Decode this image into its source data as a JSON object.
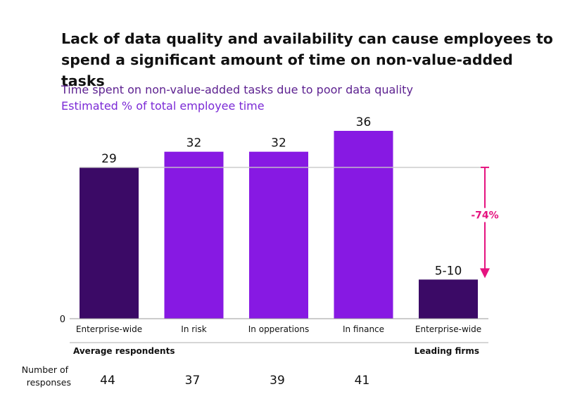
{
  "chart_data": {
    "type": "bar",
    "title": "Lack of data quality and availability can cause employees to spend a significant amount of time on non-value-added tasks",
    "subtitle": "Time spent on non-value-added tasks due to poor data quality",
    "ylabel": "Estimated % of total employee time",
    "ylim": [
      0,
      36
    ],
    "y_ticks": [
      "0"
    ],
    "categories": [
      "Enterprise-wide",
      "In risk",
      "In opperations",
      "In finance",
      "Enterprise-wide"
    ],
    "values": [
      29,
      32,
      32,
      36,
      7.5
    ],
    "value_labels": [
      "29",
      "32",
      "32",
      "36",
      "5-10"
    ],
    "colors": [
      "#3b0a66",
      "#8719e3",
      "#8719e3",
      "#8719e3",
      "#3b0a66"
    ],
    "groups": [
      {
        "label": "Average respondents",
        "categories": [
          0,
          1,
          2,
          3
        ]
      },
      {
        "label": "Leading firms",
        "categories": [
          4
        ]
      }
    ],
    "reference_line": {
      "value": 29
    },
    "annotation": {
      "text": "-74%",
      "color": "#e5137f",
      "from": 29,
      "to": 5
    },
    "responses": {
      "label": "Number of responses",
      "label_lines": [
        "Number of",
        "responses"
      ],
      "values": [
        "44",
        "37",
        "39",
        "41"
      ]
    }
  }
}
